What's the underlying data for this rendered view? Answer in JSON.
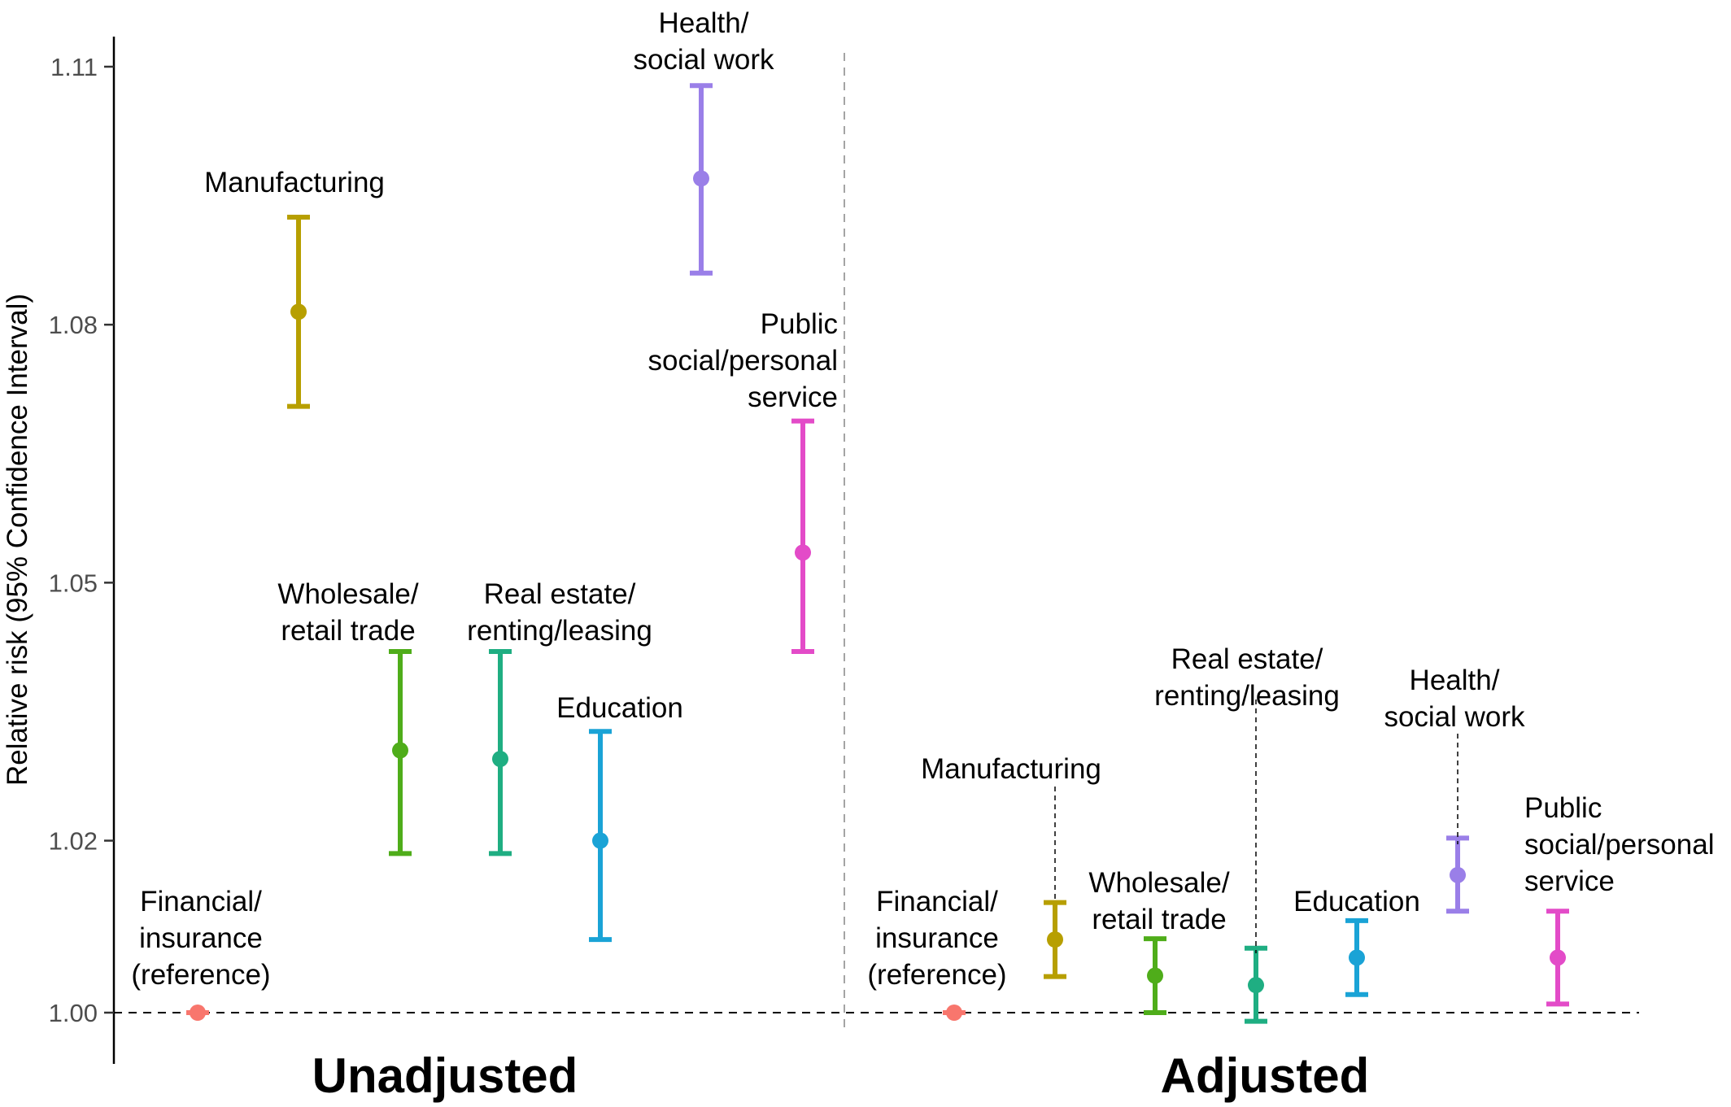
{
  "chart_data": {
    "type": "errorbar",
    "ylabel": "Relative risk (95% Confidence Interval)",
    "ylim": [
      0.993,
      1.113
    ],
    "yticks": [
      1.0,
      1.02,
      1.05,
      1.08,
      1.11
    ],
    "ytick_labels": [
      "1.00",
      "1.02",
      "1.05",
      "1.08",
      "1.11"
    ],
    "reference_line": 1.0,
    "panel_divider": true,
    "panels": [
      {
        "name": "Unadjusted",
        "points": [
          {
            "category": "Financial/ insurance (reference)",
            "label_lines": [
              "Financial/",
              "insurance",
              "(reference)"
            ],
            "estimate": 1.0,
            "lower": 1.0,
            "upper": 1.0,
            "color": "#F8766D"
          },
          {
            "category": "Manufacturing",
            "label_lines": [
              "Manufacturing"
            ],
            "estimate": 1.0815,
            "lower": 1.0705,
            "upper": 1.0925,
            "color": "#B79F00"
          },
          {
            "category": "Wholesale/ retail trade",
            "label_lines": [
              "Wholesale/",
              "retail trade"
            ],
            "estimate": 1.0305,
            "lower": 1.0185,
            "upper": 1.042,
            "color": "#4FAD1A"
          },
          {
            "category": "Real estate/ renting/leasing",
            "label_lines": [
              "Real estate/",
              "renting/leasing"
            ],
            "estimate": 1.0295,
            "lower": 1.0185,
            "upper": 1.042,
            "color": "#1FAE82"
          },
          {
            "category": "Education",
            "label_lines": [
              "Education"
            ],
            "estimate": 1.02,
            "lower": 1.0085,
            "upper": 1.0327,
            "color": "#1AA3D6"
          },
          {
            "category": "Health/ social work",
            "label_lines": [
              "Health/",
              "social work"
            ],
            "estimate": 1.097,
            "lower": 1.086,
            "upper": 1.1078,
            "color": "#9A7FE8"
          },
          {
            "category": "Public social/personal service",
            "label_lines": [
              "Public",
              "social/personal",
              "service"
            ],
            "estimate": 1.0535,
            "lower": 1.042,
            "upper": 1.0688,
            "color": "#E34BC8"
          }
        ]
      },
      {
        "name": "Adjusted",
        "points": [
          {
            "category": "Financial/ insurance (reference)",
            "label_lines": [
              "Financial/",
              "insurance",
              "(reference)"
            ],
            "estimate": 1.0,
            "lower": 1.0,
            "upper": 1.0,
            "color": "#F8766D"
          },
          {
            "category": "Manufacturing",
            "label_lines": [
              "Manufacturing"
            ],
            "estimate": 1.0085,
            "lower": 1.0042,
            "upper": 1.0128,
            "color": "#B79F00"
          },
          {
            "category": "Wholesale/ retail trade",
            "label_lines": [
              "Wholesale/",
              "retail trade"
            ],
            "estimate": 1.0043,
            "lower": 1.0,
            "upper": 1.0086,
            "color": "#4FAD1A"
          },
          {
            "category": "Real estate/ renting/leasing",
            "label_lines": [
              "Real estate/",
              "renting/leasing"
            ],
            "estimate": 1.0032,
            "lower": 0.999,
            "upper": 1.0075,
            "color": "#1FAE82"
          },
          {
            "category": "Education",
            "label_lines": [
              "Education"
            ],
            "estimate": 1.0064,
            "lower": 1.0021,
            "upper": 1.0107,
            "color": "#1AA3D6"
          },
          {
            "category": "Health/ social work",
            "label_lines": [
              "Health/",
              "social work"
            ],
            "estimate": 1.016,
            "lower": 1.0118,
            "upper": 1.0203,
            "color": "#9A7FE8"
          },
          {
            "category": "Public social/personal service",
            "label_lines": [
              "Public",
              "social/personal",
              "service"
            ],
            "estimate": 1.0064,
            "lower": 1.001,
            "upper": 1.0118,
            "color": "#E34BC8"
          }
        ]
      }
    ]
  }
}
